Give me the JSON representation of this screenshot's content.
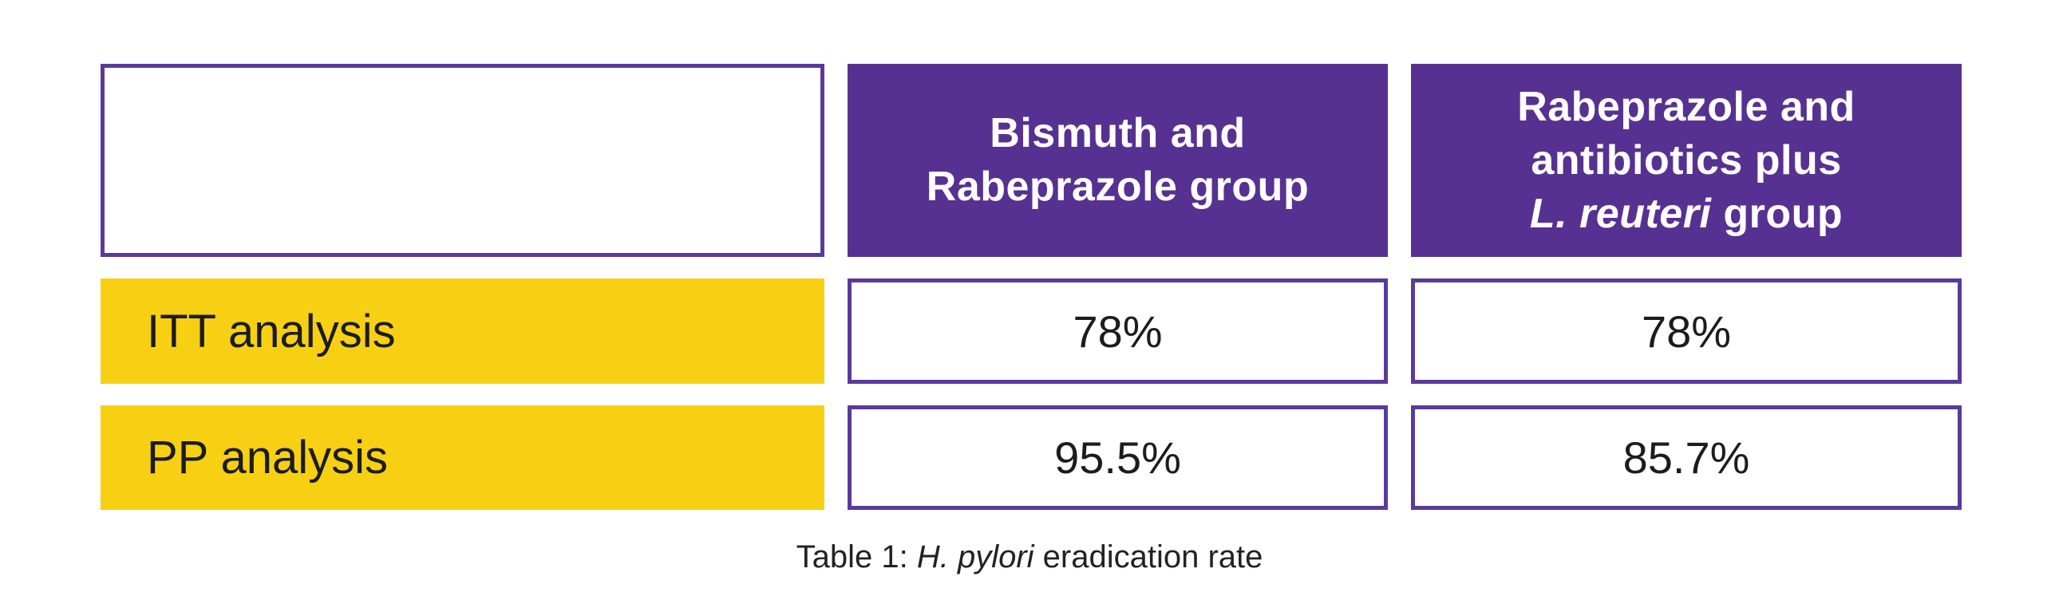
{
  "chart_data": {
    "type": "table",
    "title": "Table 1: H. pylori eradication rate",
    "columns": [
      "",
      "Bismuth and Rabeprazole group",
      "Rabeprazole and antibiotics plus L. reuteri group"
    ],
    "rows": [
      {
        "label": "ITT analysis",
        "values": [
          "78%",
          "78%"
        ]
      },
      {
        "label": "PP analysis",
        "values": [
          "95.5%",
          "85.7%"
        ]
      }
    ]
  },
  "header_display": {
    "col2_lines": [
      "Bismuth and",
      "Rabeprazole group"
    ],
    "col3_lines": [
      "Rabeprazole and",
      "antibiotics plus"
    ],
    "col3_line3_italic": "L. reuteri",
    "col3_line3_rest": " group"
  },
  "caption": {
    "prefix": "Table 1: ",
    "italic": "H. pylori",
    "suffix": " eradication rate"
  },
  "colors": {
    "header_bg": "#573191",
    "header_text": "#ffffff",
    "row_label_bg": "#f7d014",
    "cell_border": "#5b3a9b",
    "body_text": "#1c1c1c",
    "page_bg": "#ffffff"
  }
}
